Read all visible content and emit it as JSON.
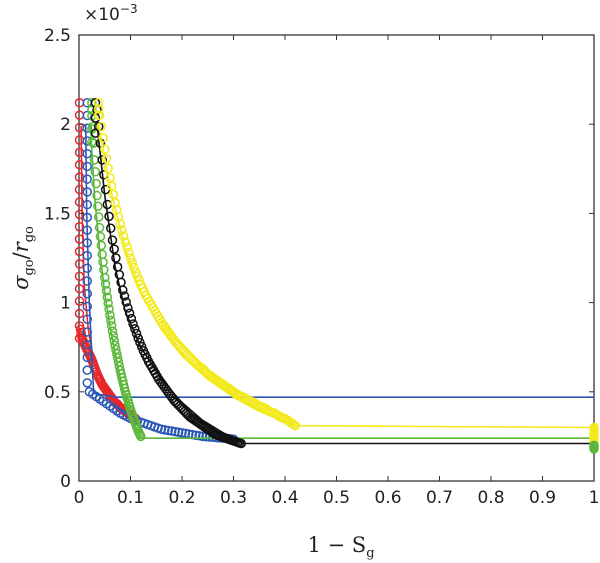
{
  "chart_data": {
    "type": "scatter",
    "xlabel": "1 − S",
    "xlabel_sub": "g",
    "ylabel_parts": {
      "sigma": "σ",
      "sub1": "go",
      "slash": "/",
      "r": "r",
      "sub2": "go"
    },
    "y_multiplier": "×10",
    "y_multiplier_exp": "−3",
    "xlim": [
      0,
      1
    ],
    "ylim": [
      0,
      2.5
    ],
    "x_ticks": [
      "0",
      "0.1",
      "0.2",
      "0.3",
      "0.4",
      "0.5",
      "0.6",
      "0.7",
      "0.8",
      "0.9",
      "1"
    ],
    "y_ticks": [
      "0",
      "0.5",
      "1",
      "1.5",
      "2",
      "2.5"
    ],
    "grid": false,
    "legend": "none",
    "y_units_note": "values in units of 1e-3",
    "series": [
      {
        "color": "#e8272a",
        "line_points": [
          [
            0.004,
            1.99
          ],
          [
            0.006,
            1.5
          ],
          [
            0.01,
            1.1
          ],
          [
            0.018,
            0.85
          ],
          [
            0.03,
            0.65
          ],
          [
            0.045,
            0.56
          ],
          [
            0.06,
            0.5
          ],
          [
            0.075,
            0.45
          ],
          [
            0.09,
            0.42
          ],
          [
            0.1,
            0.41
          ]
        ],
        "markers": {
          "vertical_x": 0.001,
          "vertical_y_from": 0.8,
          "vertical_y_to": 2.12,
          "curve": [
            [
              0.003,
              0.85
            ],
            [
              0.006,
              0.8
            ],
            [
              0.01,
              0.77
            ],
            [
              0.015,
              0.74
            ],
            [
              0.02,
              0.71
            ],
            [
              0.025,
              0.68
            ],
            [
              0.03,
              0.64
            ],
            [
              0.035,
              0.6
            ],
            [
              0.04,
              0.57
            ],
            [
              0.045,
              0.54
            ],
            [
              0.05,
              0.52
            ],
            [
              0.055,
              0.5
            ],
            [
              0.06,
              0.48
            ],
            [
              0.065,
              0.46
            ],
            [
              0.07,
              0.44
            ],
            [
              0.075,
              0.43
            ],
            [
              0.08,
              0.41
            ],
            [
              0.085,
              0.4
            ],
            [
              0.09,
              0.39
            ],
            [
              0.095,
              0.38
            ],
            [
              0.1,
              0.37
            ],
            [
              0.105,
              0.36
            ],
            [
              0.11,
              0.35
            ]
          ]
        }
      },
      {
        "color": "#2b58b5",
        "line_points": [
          [
            0.013,
            2.0
          ],
          [
            0.015,
            1.5
          ],
          [
            0.02,
            1.0
          ],
          [
            0.025,
            0.7
          ],
          [
            0.028,
            0.52
          ],
          [
            0.03,
            0.49
          ],
          [
            0.07,
            0.47
          ],
          [
            0.12,
            0.47
          ],
          [
            1.0,
            0.47
          ]
        ],
        "markers": {
          "vertical_x": 0.016,
          "vertical_y_from": 0.55,
          "vertical_y_to": 2.12,
          "curve": [
            [
              0.02,
              0.5
            ],
            [
              0.04,
              0.46
            ],
            [
              0.06,
              0.42
            ],
            [
              0.08,
              0.38
            ],
            [
              0.1,
              0.35
            ],
            [
              0.12,
              0.33
            ],
            [
              0.14,
              0.31
            ],
            [
              0.16,
              0.29
            ],
            [
              0.18,
              0.28
            ],
            [
              0.2,
              0.27
            ],
            [
              0.22,
              0.26
            ],
            [
              0.24,
              0.25
            ],
            [
              0.26,
              0.245
            ],
            [
              0.28,
              0.24
            ],
            [
              0.3,
              0.235
            ]
          ]
        }
      },
      {
        "color": "#5cb83b",
        "line_points": [
          [
            0.022,
            2.0
          ],
          [
            0.03,
            1.6
          ],
          [
            0.04,
            1.3
          ],
          [
            0.05,
            1.05
          ],
          [
            0.06,
            0.87
          ],
          [
            0.07,
            0.72
          ],
          [
            0.08,
            0.58
          ],
          [
            0.09,
            0.46
          ],
          [
            0.1,
            0.37
          ],
          [
            0.11,
            0.3
          ],
          [
            0.12,
            0.24
          ],
          [
            1.0,
            0.24
          ]
        ],
        "markers": {
          "vertical_x": 0.025,
          "vertical_y_from": 1.9,
          "vertical_y_to": 2.12,
          "curve": [
            [
              0.025,
              2.08
            ],
            [
              0.03,
              1.8
            ],
            [
              0.035,
              1.6
            ],
            [
              0.04,
              1.42
            ],
            [
              0.045,
              1.27
            ],
            [
              0.05,
              1.14
            ],
            [
              0.055,
              1.03
            ],
            [
              0.06,
              0.93
            ],
            [
              0.065,
              0.84
            ],
            [
              0.07,
              0.76
            ],
            [
              0.075,
              0.69
            ],
            [
              0.08,
              0.62
            ],
            [
              0.085,
              0.56
            ],
            [
              0.09,
              0.5
            ],
            [
              0.095,
              0.45
            ],
            [
              0.1,
              0.4
            ],
            [
              0.105,
              0.36
            ],
            [
              0.11,
              0.32
            ],
            [
              0.115,
              0.28
            ],
            [
              0.12,
              0.25
            ]
          ]
        }
      },
      {
        "color": "#111111",
        "line_points": [
          [
            0.035,
            2.0
          ],
          [
            0.05,
            1.6
          ],
          [
            0.07,
            1.2
          ],
          [
            0.09,
            0.95
          ],
          [
            0.12,
            0.75
          ],
          [
            0.16,
            0.57
          ],
          [
            0.2,
            0.44
          ],
          [
            0.24,
            0.34
          ],
          [
            0.28,
            0.27
          ],
          [
            0.32,
            0.21
          ],
          [
            1.0,
            0.21
          ]
        ],
        "markers": {
          "vertical_x": 0.032,
          "vertical_y_from": 1.95,
          "vertical_y_to": 2.12,
          "curve": [
            [
              0.035,
              2.08
            ],
            [
              0.045,
              1.8
            ],
            [
              0.055,
              1.55
            ],
            [
              0.065,
              1.35
            ],
            [
              0.075,
              1.2
            ],
            [
              0.085,
              1.07
            ],
            [
              0.095,
              0.97
            ],
            [
              0.105,
              0.88
            ],
            [
              0.115,
              0.8
            ],
            [
              0.125,
              0.73
            ],
            [
              0.135,
              0.67
            ],
            [
              0.145,
              0.62
            ],
            [
              0.155,
              0.57
            ],
            [
              0.165,
              0.53
            ],
            [
              0.175,
              0.49
            ],
            [
              0.185,
              0.45
            ],
            [
              0.195,
              0.42
            ],
            [
              0.205,
              0.39
            ],
            [
              0.215,
              0.36
            ],
            [
              0.225,
              0.34
            ],
            [
              0.235,
              0.32
            ],
            [
              0.245,
              0.3
            ],
            [
              0.255,
              0.28
            ],
            [
              0.265,
              0.26
            ],
            [
              0.275,
              0.25
            ],
            [
              0.285,
              0.24
            ],
            [
              0.295,
              0.23
            ],
            [
              0.305,
              0.22
            ],
            [
              0.315,
              0.21
            ]
          ]
        }
      },
      {
        "color": "#f2ea1c",
        "line_points": [
          [
            0.038,
            2.0
          ],
          [
            0.06,
            1.65
          ],
          [
            0.09,
            1.3
          ],
          [
            0.12,
            1.05
          ],
          [
            0.16,
            0.85
          ],
          [
            0.2,
            0.7
          ],
          [
            0.25,
            0.57
          ],
          [
            0.3,
            0.47
          ],
          [
            0.35,
            0.39
          ],
          [
            0.42,
            0.31
          ],
          [
            1.0,
            0.3
          ]
        ],
        "markers": {
          "vertical_x": 0.038,
          "vertical_y_from": 2.05,
          "vertical_y_to": 2.12,
          "curve": [
            [
              0.04,
              2.05
            ],
            [
              0.05,
              1.86
            ],
            [
              0.06,
              1.7
            ],
            [
              0.07,
              1.56
            ],
            [
              0.08,
              1.44
            ],
            [
              0.09,
              1.34
            ],
            [
              0.1,
              1.25
            ],
            [
              0.11,
              1.17
            ],
            [
              0.12,
              1.1
            ],
            [
              0.13,
              1.04
            ],
            [
              0.14,
              0.99
            ],
            [
              0.15,
              0.94
            ],
            [
              0.16,
              0.89
            ],
            [
              0.17,
              0.85
            ],
            [
              0.18,
              0.81
            ],
            [
              0.19,
              0.77
            ],
            [
              0.2,
              0.74
            ],
            [
              0.21,
              0.71
            ],
            [
              0.22,
              0.68
            ],
            [
              0.23,
              0.65
            ],
            [
              0.24,
              0.63
            ],
            [
              0.25,
              0.6
            ],
            [
              0.26,
              0.58
            ],
            [
              0.27,
              0.56
            ],
            [
              0.28,
              0.54
            ],
            [
              0.29,
              0.52
            ],
            [
              0.3,
              0.5
            ],
            [
              0.31,
              0.48
            ],
            [
              0.32,
              0.47
            ],
            [
              0.33,
              0.45
            ],
            [
              0.34,
              0.44
            ],
            [
              0.35,
              0.42
            ],
            [
              0.36,
              0.41
            ],
            [
              0.37,
              0.39
            ],
            [
              0.38,
              0.38
            ],
            [
              0.39,
              0.36
            ],
            [
              0.4,
              0.35
            ],
            [
              0.41,
              0.33
            ],
            [
              0.42,
              0.31
            ]
          ]
        }
      }
    ],
    "end_markers_at_x1": [
      {
        "color": "#f2ea1c",
        "y_from": 0.22,
        "y_to": 0.3
      },
      {
        "color": "#5cb83b",
        "y_from": 0.18,
        "y_to": 0.2
      }
    ]
  }
}
